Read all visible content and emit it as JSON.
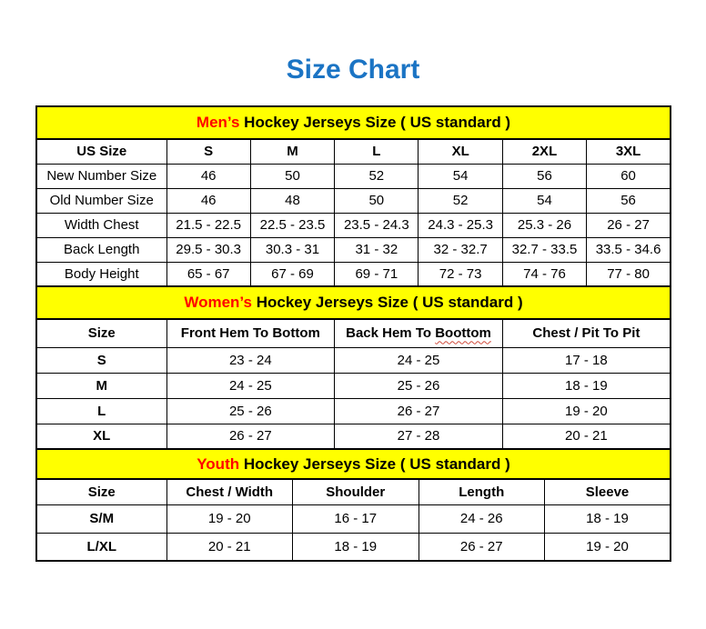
{
  "title": "Size Chart",
  "colors": {
    "title_blue": "#1b74c4",
    "band_yellow": "#ffff00",
    "accent_red": "#ff0000",
    "border_black": "#000000"
  },
  "sections": {
    "mens": {
      "band_highlight": "Men’s",
      "band_rest": "Hockey Jerseys Size ( US standard )",
      "columns": [
        "US Size",
        "S",
        "M",
        "L",
        "XL",
        "2XL",
        "3XL"
      ],
      "rows": [
        {
          "label": "New Number Size",
          "values": [
            "46",
            "50",
            "52",
            "54",
            "56",
            "60"
          ]
        },
        {
          "label": "Old Number Size",
          "values": [
            "46",
            "48",
            "50",
            "52",
            "54",
            "56"
          ]
        },
        {
          "label": "Width Chest",
          "values": [
            "21.5 - 22.5",
            "22.5 - 23.5",
            "23.5 - 24.3",
            "24.3 - 25.3",
            "25.3 - 26",
            "26 - 27"
          ]
        },
        {
          "label": "Back Length",
          "values": [
            "29.5 - 30.3",
            "30.3 - 31",
            "31 - 32",
            "32 - 32.7",
            "32.7 - 33.5",
            "33.5 - 34.6"
          ]
        },
        {
          "label": "Body Height",
          "values": [
            "65 - 67",
            "67 - 69",
            "69 - 71",
            "72 - 73",
            "74 - 76",
            "77 - 80"
          ]
        }
      ]
    },
    "womens": {
      "band_highlight": "Women’s",
      "band_rest": "Hockey Jerseys Size ( US standard )",
      "columns": [
        "Size",
        "Front Hem To Bottom",
        "Back Hem To Boottom",
        "Chest / Pit To Pit"
      ],
      "spellcheck": {
        "column_index": 2,
        "word": "Boottom"
      },
      "rows": [
        {
          "label": "S",
          "values": [
            "23 - 24",
            "24 - 25",
            "17 - 18"
          ]
        },
        {
          "label": "M",
          "values": [
            "24 - 25",
            "25 - 26",
            "18 - 19"
          ]
        },
        {
          "label": "L",
          "values": [
            "25 - 26",
            "26 - 27",
            "19 - 20"
          ]
        },
        {
          "label": "XL",
          "values": [
            "26 - 27",
            "27 - 28",
            "20 - 21"
          ]
        }
      ]
    },
    "youth": {
      "band_highlight": "Youth",
      "band_rest": "Hockey Jerseys Size ( US standard )",
      "columns": [
        "Size",
        "Chest / Width",
        "Shoulder",
        "Length",
        "Sleeve"
      ],
      "rows": [
        {
          "label": "S/M",
          "values": [
            "19 - 20",
            "16 - 17",
            "24 - 26",
            "18 - 19"
          ]
        },
        {
          "label": "L/XL",
          "values": [
            "20 - 21",
            "18 - 19",
            "26 - 27",
            "19 - 20"
          ]
        }
      ]
    }
  }
}
